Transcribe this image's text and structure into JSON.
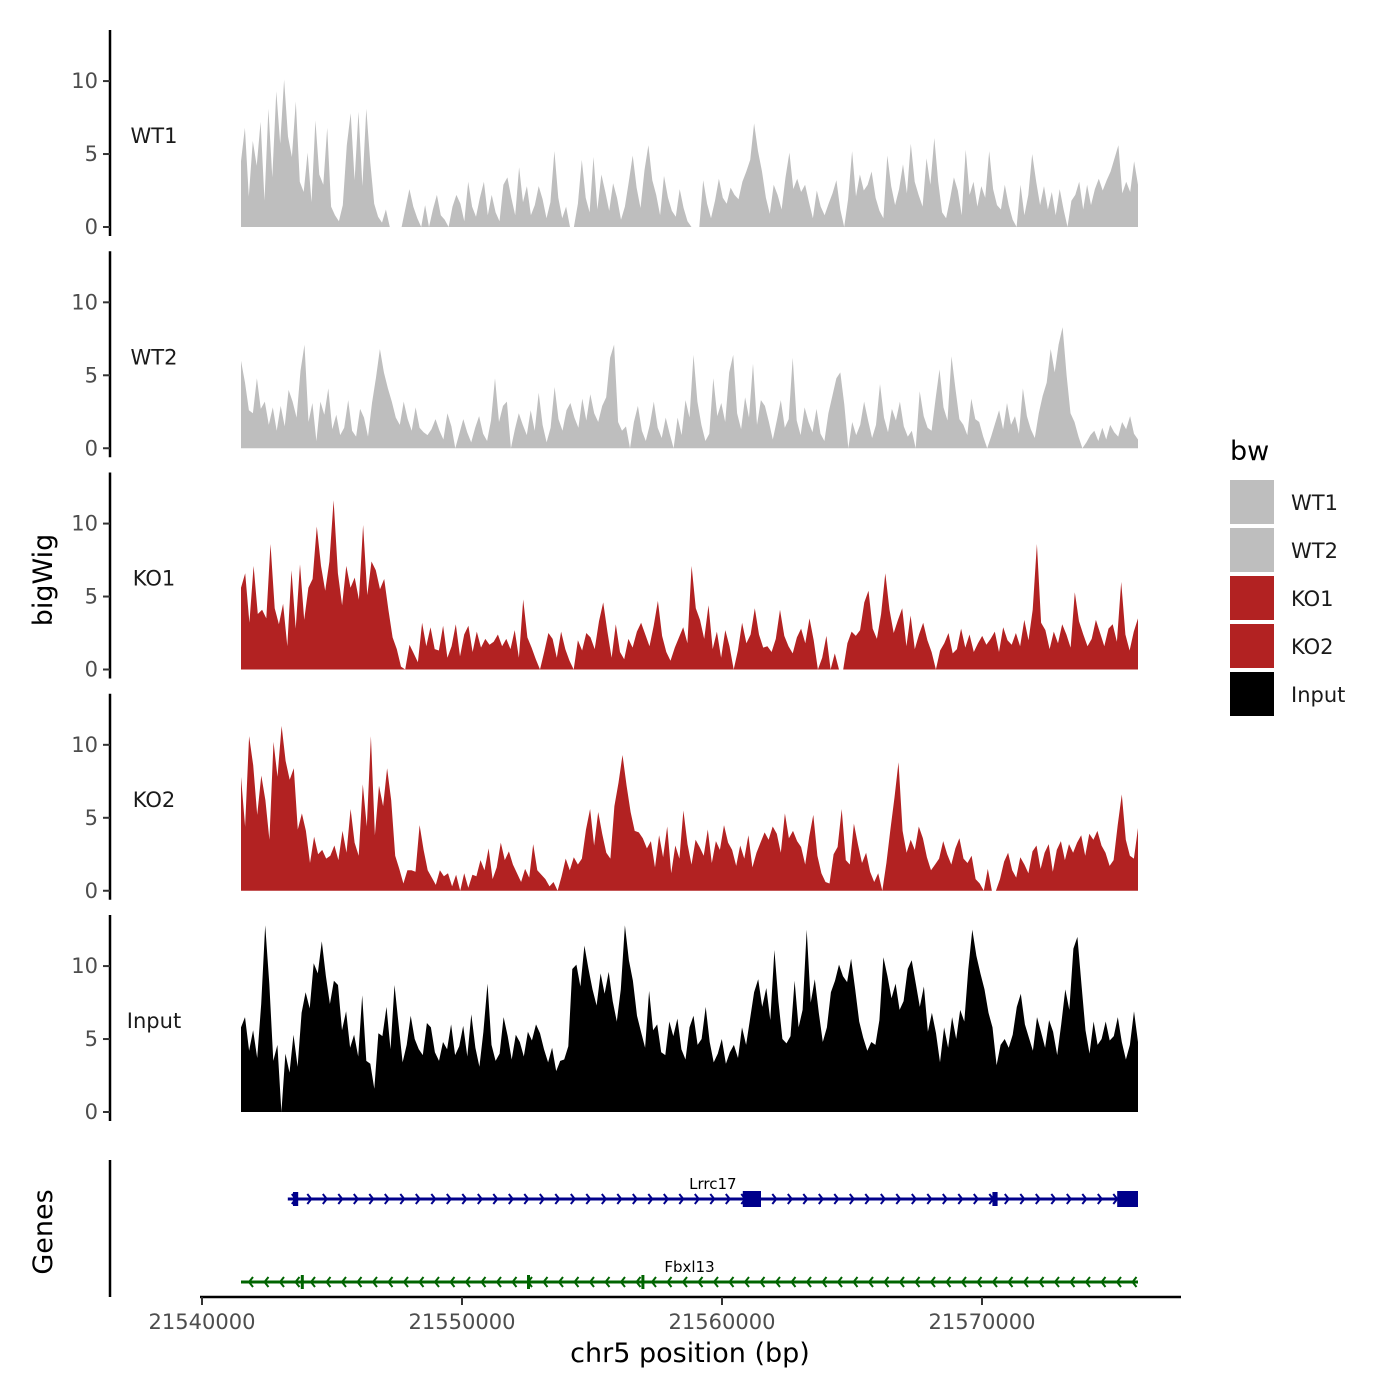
{
  "chart_data": {
    "type": "area",
    "title": "",
    "xlabel": "chr5 position (bp)",
    "ylabel": "bigWig",
    "genes_label": "Genes",
    "xlim": [
      21538000,
      21576500
    ],
    "data_range": [
      21541500,
      21576000
    ],
    "ylim": [
      0,
      13.5
    ],
    "yticks": [
      "0",
      "5",
      "10"
    ],
    "xticks": [
      "21540000",
      "21550000",
      "21560000",
      "21570000"
    ],
    "legend": {
      "title": "bw",
      "position": "right"
    },
    "series": [
      {
        "name": "WT1",
        "label": "WT1",
        "color": "#bebebe",
        "values": [
          4.5,
          6.8,
          2.1,
          5.9,
          4.2,
          7.2,
          1.8,
          8.1,
          3.4,
          9.3,
          5.7,
          10.1,
          6.2,
          4.8,
          8.6,
          3.1,
          2.4,
          5.1,
          1.7,
          7.3,
          3.6,
          2.9,
          6.8,
          1.4,
          0.8,
          0.4,
          1.5,
          5.6,
          7.8,
          3.2,
          7.9,
          2.8,
          8.1,
          4.4,
          1.6,
          0.7,
          0.3,
          1.2,
          0.0,
          0.0,
          0.0,
          0.0,
          1.3,
          2.6,
          1.4,
          0.6,
          0.0,
          1.5,
          0.0,
          1.2,
          2.2,
          0.8,
          0.5,
          0.0,
          1.4,
          2.2,
          1.6,
          0.4,
          3.1,
          1.4,
          0.7,
          2.0,
          3.1,
          0.8,
          2.2,
          1.0,
          0.4,
          2.9,
          3.4,
          2.0,
          0.8,
          4.1,
          1.7,
          2.8,
          0.8,
          1.5,
          2.8,
          1.9,
          0.6,
          1.7,
          5.2,
          2.0,
          0.6,
          1.4,
          0.0,
          0.0,
          1.6,
          4.6,
          2.0,
          1.0,
          4.8,
          1.2,
          3.6,
          2.4,
          1.1,
          3.0,
          2.0,
          0.5,
          1.4,
          3.1,
          4.9,
          2.7,
          1.3,
          3.9,
          5.6,
          3.2,
          2.2,
          0.8,
          3.5,
          2.0,
          1.1,
          0.7,
          2.6,
          1.3,
          0.4,
          0.0,
          0.0,
          0.0,
          3.2,
          1.6,
          0.6,
          1.8,
          3.3,
          2.0,
          1.6,
          2.7,
          2.2,
          1.9,
          3.1,
          3.8,
          4.6,
          7.1,
          5.2,
          3.8,
          2.0,
          0.9,
          2.9,
          2.2,
          1.2,
          3.4,
          5.1,
          2.6,
          3.3,
          2.4,
          2.9,
          1.7,
          0.6,
          2.5,
          1.4,
          0.8,
          1.6,
          2.3,
          3.2,
          1.2,
          0.0,
          1.9,
          5.2,
          2.1,
          3.6,
          2.5,
          2.9,
          3.8,
          2.0,
          1.1,
          0.6,
          4.9,
          2.8,
          1.5,
          2.6,
          4.3,
          2.3,
          5.7,
          3.1,
          2.2,
          1.4,
          4.7,
          2.9,
          6.1,
          3.1,
          1.0,
          0.6,
          1.9,
          3.4,
          2.5,
          0.8,
          5.3,
          2.2,
          3.1,
          1.4,
          2.8,
          2.0,
          5.2,
          2.6,
          1.5,
          1.2,
          2.9,
          1.5,
          0.5,
          0.0,
          2.9,
          0.8,
          2.2,
          5.0,
          3.1,
          1.5,
          2.8,
          1.2,
          2.4,
          0.8,
          2.6,
          1.2,
          0.0,
          1.8,
          2.2,
          3.1,
          1.2,
          2.9,
          1.5,
          2.6,
          3.3,
          2.5,
          3.2,
          3.8,
          4.7,
          5.6,
          2.3,
          3.1,
          2.4,
          4.5,
          2.9
        ]
      },
      {
        "name": "WT2",
        "label": "WT2",
        "color": "#bebebe",
        "values": [
          6.0,
          4.5,
          2.6,
          2.4,
          4.8,
          2.7,
          3.2,
          1.6,
          2.8,
          1.2,
          2.9,
          1.5,
          4.0,
          3.2,
          2.1,
          5.3,
          7.1,
          1.8,
          3.1,
          0.5,
          3.2,
          2.3,
          4.1,
          1.3,
          2.3,
          0.9,
          1.4,
          3.3,
          1.2,
          0.8,
          2.7,
          2.1,
          0.8,
          3.1,
          4.8,
          6.8,
          5.2,
          4.1,
          3.2,
          2.1,
          1.6,
          3.2,
          2.0,
          1.2,
          2.8,
          1.4,
          1.1,
          0.9,
          1.3,
          2.0,
          1.2,
          0.6,
          2.4,
          1.5,
          0.0,
          1.0,
          2.0,
          1.1,
          0.4,
          1.4,
          2.2,
          1.0,
          0.5,
          1.9,
          4.8,
          1.8,
          2.9,
          3.2,
          0.0,
          1.3,
          2.4,
          1.6,
          0.9,
          2.6,
          1.2,
          3.8,
          1.6,
          0.4,
          1.4,
          4.2,
          2.0,
          1.2,
          2.6,
          3.1,
          2.1,
          1.4,
          3.4,
          1.9,
          3.7,
          2.4,
          1.8,
          2.9,
          3.5,
          6.2,
          7.1,
          1.8,
          1.2,
          1.5,
          0.0,
          1.8,
          2.9,
          1.2,
          0.5,
          1.6,
          3.2,
          1.4,
          0.7,
          2.1,
          1.0,
          0.0,
          2.1,
          0.9,
          3.3,
          2.1,
          6.4,
          3.2,
          1.6,
          0.5,
          1.0,
          4.8,
          2.2,
          3.1,
          1.8,
          5.2,
          6.4,
          2.4,
          1.3,
          3.5,
          2.1,
          5.8,
          1.6,
          3.3,
          2.9,
          1.8,
          0.6,
          1.9,
          3.3,
          1.4,
          2.0,
          6.2,
          1.9,
          0.9,
          2.8,
          1.8,
          1.1,
          2.7,
          1.0,
          0.5,
          2.4,
          3.6,
          4.8,
          5.2,
          3.0,
          0.0,
          1.8,
          0.9,
          1.6,
          3.2,
          1.9,
          0.7,
          1.6,
          4.4,
          2.1,
          1.1,
          2.7,
          1.9,
          3.2,
          1.5,
          0.8,
          1.2,
          0.0,
          3.9,
          2.2,
          1.4,
          1.2,
          3.4,
          5.4,
          2.8,
          1.9,
          6.3,
          4.1,
          2.0,
          1.6,
          0.9,
          3.4,
          2.0,
          1.8,
          0.8,
          0.0,
          0.8,
          1.7,
          2.6,
          1.3,
          3.1,
          1.6,
          2.2,
          1.0,
          4.1,
          2.2,
          1.3,
          0.7,
          2.4,
          3.6,
          4.5,
          6.8,
          5.2,
          7.1,
          8.3,
          5.0,
          2.4,
          1.8,
          0.8,
          0.0,
          0.4,
          0.9,
          1.2,
          0.5,
          1.4,
          0.6,
          1.6,
          1.1,
          0.8,
          1.8,
          1.3,
          2.2,
          1.0,
          0.6
        ]
      },
      {
        "name": "KO1",
        "label": "KO1",
        "color": "#b22222",
        "values": [
          5.6,
          6.6,
          3.2,
          7.1,
          3.8,
          4.1,
          3.5,
          8.6,
          4.2,
          3.1,
          4.5,
          1.6,
          6.8,
          2.8,
          7.2,
          3.4,
          5.6,
          6.2,
          9.8,
          7.1,
          5.4,
          7.4,
          11.6,
          6.6,
          4.4,
          7.1,
          5.6,
          6.3,
          4.8,
          9.9,
          5.1,
          7.4,
          6.8,
          5.5,
          6.2,
          4.1,
          2.2,
          1.4,
          0.2,
          0.0,
          1.7,
          1.1,
          0.5,
          3.2,
          1.6,
          2.9,
          1.4,
          1.3,
          3.0,
          0.8,
          1.6,
          3.1,
          0.9,
          2.4,
          3.0,
          1.2,
          2.6,
          1.5,
          2.1,
          1.7,
          1.9,
          2.4,
          1.6,
          2.1,
          1.4,
          2.7,
          0.8,
          4.8,
          2.2,
          1.5,
          0.7,
          0.0,
          1.2,
          2.5,
          2.1,
          0.8,
          2.6,
          1.4,
          0.6,
          0.0,
          2.0,
          1.3,
          2.5,
          2.2,
          1.4,
          3.3,
          4.6,
          2.6,
          0.8,
          3.1,
          1.2,
          0.7,
          2.1,
          1.5,
          2.6,
          3.2,
          2.4,
          1.6,
          3.0,
          4.7,
          2.3,
          1.2,
          0.6,
          1.5,
          2.2,
          2.9,
          1.8,
          7.1,
          4.2,
          3.4,
          2.1,
          4.4,
          1.4,
          2.6,
          0.8,
          2.7,
          1.6,
          0.0,
          1.3,
          3.2,
          1.8,
          2.4,
          4.2,
          2.4,
          1.5,
          1.6,
          1.2,
          2.1,
          4.1,
          2.3,
          1.6,
          1.1,
          2.2,
          2.8,
          1.8,
          3.5,
          2.0,
          0.0,
          0.8,
          2.3,
          0.0,
          1.1,
          0.0,
          0.0,
          1.8,
          2.6,
          2.3,
          2.7,
          4.6,
          5.4,
          2.8,
          2.1,
          3.8,
          6.6,
          4.1,
          2.5,
          3.4,
          4.2,
          1.6,
          3.7,
          1.4,
          2.4,
          3.2,
          2.0,
          1.2,
          0.0,
          1.3,
          1.8,
          2.5,
          1.1,
          1.4,
          2.8,
          1.5,
          2.4,
          1.2,
          1.8,
          2.3,
          1.7,
          2.1,
          2.6,
          1.2,
          2.9,
          2.0,
          1.7,
          2.5,
          1.6,
          3.4,
          2.0,
          4.1,
          8.6,
          3.2,
          2.7,
          1.4,
          2.6,
          1.8,
          3.1,
          2.4,
          1.5,
          5.3,
          3.3,
          2.4,
          1.6,
          2.1,
          3.4,
          2.5,
          1.6,
          2.8,
          3.1,
          1.9,
          6.0,
          2.4,
          1.3,
          2.6,
          3.5
        ]
      },
      {
        "name": "KO2",
        "label": "KO2",
        "color": "#b22222",
        "values": [
          7.8,
          4.4,
          10.6,
          8.6,
          5.2,
          7.9,
          6.2,
          3.5,
          10.2,
          7.8,
          11.3,
          8.9,
          7.6,
          8.4,
          4.2,
          5.3,
          4.1,
          1.9,
          3.7,
          2.5,
          2.8,
          2.2,
          2.4,
          3.1,
          2.1,
          4.1,
          2.6,
          5.6,
          3.3,
          2.4,
          7.3,
          4.4,
          10.6,
          3.8,
          7.2,
          5.8,
          8.4,
          6.2,
          2.4,
          1.5,
          0.5,
          1.4,
          1.4,
          1.3,
          4.5,
          2.8,
          1.4,
          0.9,
          0.4,
          1.4,
          1.0,
          1.2,
          0.3,
          1.1,
          0.0,
          1.2,
          0.2,
          1.1,
          1.0,
          2.1,
          1.4,
          2.9,
          0.8,
          1.6,
          3.3,
          2.1,
          2.7,
          1.8,
          1.2,
          0.6,
          1.5,
          0.9,
          3.2,
          1.4,
          1.1,
          0.8,
          0.3,
          0.6,
          0.0,
          1.0,
          2.2,
          1.4,
          2.3,
          1.8,
          2.2,
          4.2,
          5.6,
          3.1,
          5.4,
          3.9,
          2.6,
          2.2,
          5.8,
          7.4,
          9.3,
          7.2,
          5.4,
          4.1,
          4.0,
          3.6,
          2.9,
          3.4,
          1.6,
          3.8,
          2.3,
          4.4,
          1.2,
          3.1,
          2.2,
          5.5,
          3.2,
          1.8,
          3.5,
          3.0,
          2.4,
          4.2,
          1.9,
          3.4,
          2.8,
          4.5,
          3.3,
          2.8,
          1.7,
          3.1,
          2.2,
          3.8,
          1.6,
          2.6,
          3.3,
          4.0,
          3.5,
          4.4,
          3.9,
          2.6,
          5.3,
          3.6,
          4.1,
          3.4,
          3.0,
          1.8,
          3.7,
          5.2,
          2.4,
          1.2,
          0.6,
          0.5,
          2.5,
          3.0,
          5.6,
          2.1,
          1.8,
          4.6,
          3.2,
          1.9,
          2.6,
          1.3,
          0.6,
          1.2,
          0.0,
          1.9,
          4.2,
          6.4,
          8.8,
          4.1,
          2.6,
          3.5,
          2.8,
          4.4,
          3.6,
          2.3,
          1.4,
          1.8,
          2.2,
          3.4,
          2.5,
          1.8,
          2.9,
          3.6,
          2.2,
          1.9,
          2.4,
          0.8,
          0.5,
          0.0,
          1.5,
          0.0,
          0.0,
          0.8,
          2.0,
          2.6,
          1.4,
          0.9,
          2.3,
          1.8,
          1.2,
          2.7,
          3.1,
          1.5,
          2.6,
          3.2,
          1.3,
          2.8,
          3.4,
          2.1,
          3.2,
          2.6,
          3.3,
          3.8,
          2.4,
          3.9,
          3.5,
          4.1,
          3.1,
          2.6,
          1.7,
          2.1,
          4.5,
          6.6,
          3.5,
          2.4,
          2.2,
          4.3
        ]
      },
      {
        "name": "Input",
        "label": "Input",
        "color": "#000000",
        "values": [
          5.8,
          6.5,
          4.2,
          5.6,
          3.7,
          7.4,
          12.8,
          8.8,
          3.5,
          4.6,
          0.0,
          4.0,
          2.7,
          5.3,
          3.1,
          6.8,
          8.2,
          7.1,
          10.2,
          9.5,
          11.7,
          9.3,
          7.4,
          9.0,
          8.7,
          5.6,
          6.9,
          4.4,
          5.3,
          3.8,
          8.0,
          3.5,
          3.3,
          1.6,
          5.4,
          5.2,
          7.2,
          4.3,
          8.7,
          6.0,
          3.4,
          4.6,
          6.6,
          5.0,
          4.3,
          3.9,
          6.1,
          5.8,
          4.1,
          3.5,
          4.8,
          4.3,
          6.0,
          3.9,
          4.5,
          5.9,
          3.8,
          6.7,
          4.4,
          3.1,
          5.5,
          8.8,
          4.6,
          3.5,
          4.0,
          6.5,
          5.2,
          3.6,
          5.3,
          4.8,
          3.8,
          5.5,
          4.9,
          6.0,
          5.4,
          4.3,
          3.4,
          4.4,
          2.8,
          3.5,
          3.6,
          4.5,
          9.8,
          10.1,
          8.6,
          11.4,
          9.8,
          8.4,
          7.3,
          9.5,
          8.1,
          9.6,
          7.6,
          6.2,
          8.4,
          12.8,
          10.4,
          9.0,
          6.6,
          5.5,
          4.4,
          8.3,
          5.6,
          6.0,
          4.1,
          3.9,
          6.2,
          5.2,
          6.4,
          4.3,
          3.6,
          5.8,
          6.6,
          4.6,
          5.0,
          7.2,
          4.8,
          3.4,
          4.0,
          5.0,
          3.3,
          4.1,
          4.6,
          3.7,
          5.8,
          4.6,
          6.4,
          8.2,
          9.1,
          7.2,
          8.5,
          6.3,
          11.1,
          7.6,
          5.0,
          4.7,
          5.2,
          9.0,
          5.8,
          7.0,
          12.5,
          7.5,
          9.1,
          6.8,
          4.8,
          5.8,
          8.2,
          9.0,
          10.1,
          9.3,
          8.9,
          10.5,
          8.4,
          6.2,
          5.1,
          4.2,
          4.8,
          4.6,
          6.3,
          10.6,
          9.3,
          7.8,
          8.8,
          7.0,
          7.6,
          9.8,
          10.4,
          8.8,
          7.2,
          8.6,
          5.5,
          6.8,
          5.4,
          3.4,
          5.8,
          4.4,
          6.5,
          5.0,
          7.0,
          6.2,
          9.8,
          12.5,
          10.7,
          9.5,
          8.4,
          6.8,
          5.8,
          3.2,
          4.6,
          5.0,
          4.4,
          5.3,
          7.2,
          8.1,
          6.0,
          5.1,
          4.2,
          6.5,
          5.5,
          4.4,
          6.3,
          5.5,
          3.9,
          6.0,
          8.4,
          7.0,
          11.2,
          12.0,
          8.8,
          5.6,
          4.0,
          6.2,
          4.6,
          5.0,
          6.2,
          4.9,
          5.2,
          6.5,
          4.8,
          3.6,
          4.6,
          6.9,
          4.8
        ]
      }
    ],
    "genes": [
      {
        "name": "Lrrc17",
        "strand": "+",
        "color": "#00008b",
        "start": 21543300,
        "end": 21576000,
        "exons": [
          [
            21543500,
            21543700
          ],
          [
            21560800,
            21561500
          ],
          [
            21570400,
            21570600
          ],
          [
            21575200,
            21576000
          ]
        ]
      },
      {
        "name": "Fbxl13",
        "strand": "-",
        "color": "#006400",
        "start": 21541500,
        "end": 21576000,
        "exons": [
          [
            21543800,
            21543900
          ],
          [
            21552500,
            21552600
          ],
          [
            21556900,
            21557000
          ]
        ]
      }
    ]
  }
}
